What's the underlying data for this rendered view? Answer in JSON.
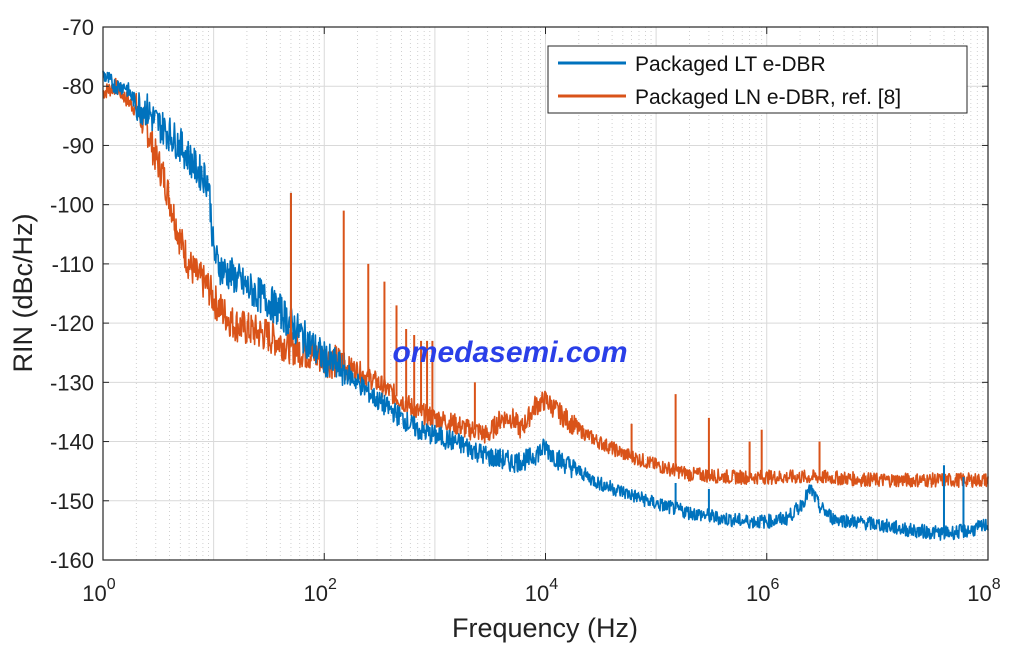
{
  "chart_data": {
    "type": "line",
    "xscale": "log",
    "xlim": [
      1,
      100000000
    ],
    "ylim": [
      -160,
      -70
    ],
    "xlabel": "Frequency (Hz)",
    "ylabel": "RIN (dBc/Hz)",
    "grid": true,
    "legend_position": "top-right",
    "x_ticks": [
      {
        "value": 1,
        "base": "10",
        "exp": "0"
      },
      {
        "value": 100,
        "base": "10",
        "exp": "2"
      },
      {
        "value": 10000,
        "base": "10",
        "exp": "4"
      },
      {
        "value": 1000000,
        "base": "10",
        "exp": "6"
      },
      {
        "value": 100000000,
        "base": "10",
        "exp": "8"
      }
    ],
    "y_ticks": [
      -160,
      -150,
      -140,
      -130,
      -120,
      -110,
      -100,
      -90,
      -80,
      -70
    ],
    "series": [
      {
        "name": "Packaged LT e-DBR",
        "color": "#0072BD",
        "x": [
          1,
          1.3,
          1.6,
          2,
          2.5,
          3,
          4,
          5,
          6,
          7,
          8,
          9,
          10,
          11,
          12,
          15,
          20,
          30,
          40,
          50,
          70,
          100,
          150,
          200,
          300,
          500,
          700,
          1000,
          1500,
          2000,
          3000,
          4000,
          5000,
          7000,
          10000,
          13000,
          20000,
          30000,
          50000,
          100000,
          200000,
          400000,
          700000,
          1000000,
          1500000,
          2000000,
          2500000,
          3000000,
          4000000,
          6000000,
          10000000,
          20000000,
          40000000,
          70000000,
          100000000
        ],
        "y": [
          -78,
          -80,
          -80,
          -83,
          -84,
          -86,
          -88,
          -90,
          -92,
          -94,
          -95,
          -96,
          -108,
          -110,
          -111,
          -112,
          -114,
          -116,
          -118,
          -120,
          -123,
          -126,
          -128,
          -130,
          -133,
          -136,
          -138,
          -139,
          -140,
          -141,
          -142.5,
          -143,
          -143.5,
          -143,
          -141,
          -143,
          -145,
          -147,
          -148.5,
          -150.5,
          -152,
          -153,
          -153.5,
          -153.5,
          -153,
          -151,
          -148,
          -151,
          -153,
          -153.5,
          -154,
          -155,
          -155.5,
          -155,
          -154
        ]
      },
      {
        "name": "Packaged LN e-DBR, ref. [8]",
        "color": "#D95319",
        "x": [
          1,
          1.3,
          1.6,
          2,
          2.5,
          3,
          3.5,
          4,
          5,
          6,
          7,
          8,
          9,
          10,
          12,
          15,
          20,
          30,
          50,
          70,
          100,
          150,
          200,
          300,
          500,
          700,
          1000,
          1500,
          2000,
          2300,
          3000,
          4000,
          5000,
          6000,
          7000,
          8000,
          10000,
          13000,
          20000,
          30000,
          50000,
          100000,
          200000,
          500000,
          1000000,
          3000000,
          10000000,
          30000000,
          100000000
        ],
        "y": [
          -81,
          -80,
          -82,
          -84,
          -87,
          -92,
          -95,
          -99,
          -106,
          -110,
          -112,
          -113,
          -114,
          -116,
          -118,
          -120,
          -121,
          -122,
          -124,
          -125,
          -126,
          -127,
          -128,
          -130,
          -133,
          -135,
          -136,
          -137,
          -138,
          -138,
          -139,
          -136,
          -136,
          -138,
          -136,
          -134,
          -133,
          -135,
          -138,
          -140,
          -142,
          -144,
          -145.5,
          -146,
          -146,
          -146,
          -146.5,
          -146.5,
          -146.5
        ]
      }
    ],
    "spikes": [
      {
        "series": 0,
        "x": 50,
        "y": -98
      },
      {
        "series": 1,
        "x": 50,
        "y": -98
      },
      {
        "series": 1,
        "x": 150,
        "y": -101
      },
      {
        "series": 1,
        "x": 250,
        "y": -110
      },
      {
        "series": 1,
        "x": 350,
        "y": -113
      },
      {
        "series": 1,
        "x": 450,
        "y": -117
      },
      {
        "series": 1,
        "x": 550,
        "y": -121
      },
      {
        "series": 1,
        "x": 650,
        "y": -122
      },
      {
        "series": 1,
        "x": 750,
        "y": -123
      },
      {
        "series": 1,
        "x": 850,
        "y": -123
      },
      {
        "series": 1,
        "x": 950,
        "y": -123
      },
      {
        "series": 1,
        "x": 2300,
        "y": -130
      },
      {
        "series": 1,
        "x": 60000,
        "y": -137
      },
      {
        "series": 1,
        "x": 150000,
        "y": -132
      },
      {
        "series": 1,
        "x": 300000,
        "y": -136
      },
      {
        "series": 1,
        "x": 700000,
        "y": -140
      },
      {
        "series": 1,
        "x": 900000,
        "y": -138
      },
      {
        "series": 1,
        "x": 3000000,
        "y": -140
      },
      {
        "series": 0,
        "x": 150000,
        "y": -147
      },
      {
        "series": 0,
        "x": 300000,
        "y": -148
      },
      {
        "series": 0,
        "x": 40000000,
        "y": -144
      },
      {
        "series": 0,
        "x": 60000000,
        "y": -146
      }
    ]
  },
  "watermark": "omedasemi.com"
}
